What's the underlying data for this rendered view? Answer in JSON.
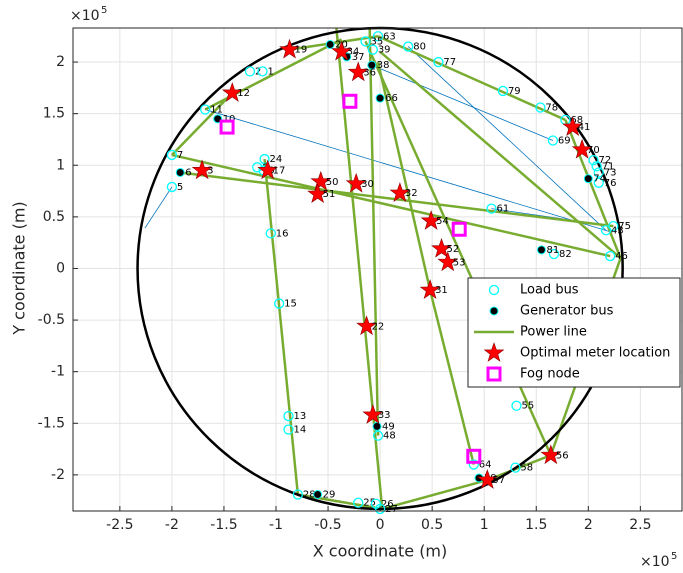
{
  "chart_data": {
    "type": "scatter",
    "xlabel": "X coordinate (m)",
    "ylabel": "Y coordinate (m)",
    "exponent": "×10",
    "exponent_power": "5",
    "xlim": [
      -2.95,
      2.9
    ],
    "ylim": [
      -2.35,
      2.33
    ],
    "xticks": [
      -2.5,
      -2,
      -1.5,
      -1,
      -0.5,
      0,
      0.5,
      1,
      1.5,
      2,
      2.5
    ],
    "yticks": [
      -2,
      -1.5,
      -1,
      -0.5,
      0,
      0.5,
      1,
      1.5,
      2
    ],
    "grid": true,
    "legend": "lower right",
    "circle_radius": 2.33,
    "circle_color": "#000000",
    "thin_lines": {
      "color": "#0072bd",
      "segments": [
        [
          -2.0,
          0.79,
          -2.26,
          0.39
        ],
        [
          -1.68,
          1.54,
          2.23,
          0.35
        ],
        [
          -0.08,
          1.97,
          1.66,
          1.24
        ],
        [
          0.27,
          2.15,
          2.17,
          0.37
        ],
        [
          1.07,
          0.58,
          2.24,
          0.41
        ]
      ]
    },
    "series": [
      {
        "name": "Load bus",
        "color": "#00ffff",
        "marker": "circle",
        "x": [
          -0.02,
          0.27,
          0.56,
          1.18,
          1.54,
          1.78,
          1.66,
          2.05,
          2.08,
          2.1,
          2.1,
          2.24,
          2.17,
          2.21,
          1.07,
          1.67,
          1.31,
          1.3,
          0.9,
          -0.02,
          -0.21,
          -0.04,
          0.0,
          -0.79,
          -0.88,
          -0.88,
          -0.97,
          -1.05,
          -1.11,
          -1.18,
          -1.12,
          -2.0,
          -2.0,
          -1.68,
          -1.25,
          -1.13,
          -0.07,
          -0.14
        ],
        "values": [
          2.25,
          2.15,
          2.0,
          1.72,
          1.56,
          1.44,
          1.24,
          1.05,
          0.99,
          0.93,
          0.83,
          0.41,
          0.37,
          0.12,
          0.58,
          0.14,
          -1.33,
          -1.93,
          -1.9,
          -1.62,
          -2.27,
          -2.28,
          -2.33,
          -2.19,
          -1.43,
          -1.56,
          -0.34,
          0.34,
          1.06,
          0.98,
          0.95,
          1.1,
          0.79,
          1.54,
          1.91,
          1.91,
          2.12,
          2.2
        ],
        "labels": [
          "63",
          "80",
          "77",
          "79",
          "78",
          "68",
          "69",
          "72",
          "71",
          "73",
          "76",
          "75",
          "43",
          "46",
          "61",
          "82",
          "55",
          "58",
          "64",
          "48",
          "25",
          "26",
          "27",
          "28",
          "13",
          "14",
          "15",
          "16",
          "24",
          "8",
          "9",
          "7",
          "5",
          "11",
          "2",
          "1",
          "39",
          "35"
        ]
      },
      {
        "name": "Generator bus",
        "color": "#000000",
        "marker": "filled-circle",
        "x": [
          -1.92,
          -1.56,
          -0.48,
          -0.08,
          0.0,
          2.0,
          1.55,
          -0.6,
          -0.03,
          0.95,
          -0.32
        ],
        "values": [
          0.93,
          1.45,
          2.17,
          1.97,
          1.65,
          0.87,
          0.18,
          -2.19,
          -1.53,
          -2.03,
          2.05
        ],
        "labels": [
          "6",
          "10",
          "20",
          "38",
          "66",
          "74",
          "81",
          "29",
          "49",
          "59",
          "37"
        ]
      },
      {
        "name": "Power line",
        "color": "#77ac30",
        "segments": [
          [
            -2.0,
            1.1,
            2.21,
            0.12
          ],
          [
            -1.92,
            0.93,
            2.24,
            0.41
          ],
          [
            -2.0,
            1.1,
            -1.42,
            1.7
          ],
          [
            -1.68,
            1.54,
            -0.37,
            2.22
          ],
          [
            -1.11,
            1.06,
            -0.79,
            -2.19
          ],
          [
            -0.42,
            2.33,
            0.02,
            -2.33
          ],
          [
            -0.1,
            2.33,
            -0.02,
            -1.62
          ],
          [
            -0.14,
            2.2,
            1.64,
            -1.81
          ],
          [
            -0.02,
            2.0,
            0.48,
            -0.21
          ],
          [
            0.48,
            -0.21,
            0.9,
            -1.9
          ],
          [
            0.0,
            2.1,
            2.31,
            0.1
          ],
          [
            -0.87,
            2.12,
            -0.02,
            2.25
          ],
          [
            -0.02,
            2.25,
            1.78,
            1.44
          ],
          [
            1.78,
            1.44,
            2.31,
            0.1
          ],
          [
            2.31,
            0.1,
            1.64,
            -1.81
          ],
          [
            1.64,
            -1.81,
            1.03,
            -2.05
          ],
          [
            1.03,
            -2.05,
            0.02,
            -2.33
          ],
          [
            0.02,
            -2.33,
            -0.79,
            -2.19
          ]
        ]
      },
      {
        "name": "Optimal meter location",
        "color": "#ff0000",
        "marker": "star",
        "x": [
          -1.42,
          -0.87,
          -0.37,
          -0.57,
          -0.6,
          -0.23,
          0.19,
          0.49,
          0.59,
          0.65,
          0.48,
          -0.13,
          -0.07,
          1.64,
          1.03,
          1.85,
          1.94,
          -1.08,
          -0.21,
          -1.71
        ],
        "values": [
          1.7,
          2.12,
          2.1,
          0.84,
          0.72,
          0.82,
          0.73,
          0.46,
          0.19,
          0.06,
          -0.21,
          -0.56,
          -1.42,
          -1.81,
          -2.05,
          1.37,
          1.15,
          0.95,
          1.9,
          0.95
        ],
        "labels": [
          "12",
          "19",
          "34",
          "50",
          "51",
          "30",
          "32",
          "54",
          "52",
          "53",
          "31",
          "22",
          "33",
          "56",
          "57",
          "41",
          "70",
          "17",
          "36",
          "3"
        ]
      },
      {
        "name": "Fog node",
        "color": "#ff00ff",
        "marker": "square",
        "x": [
          -1.47,
          -0.29,
          0.76,
          0.9
        ],
        "values": [
          1.37,
          1.62,
          0.38,
          -1.82
        ]
      }
    ]
  }
}
